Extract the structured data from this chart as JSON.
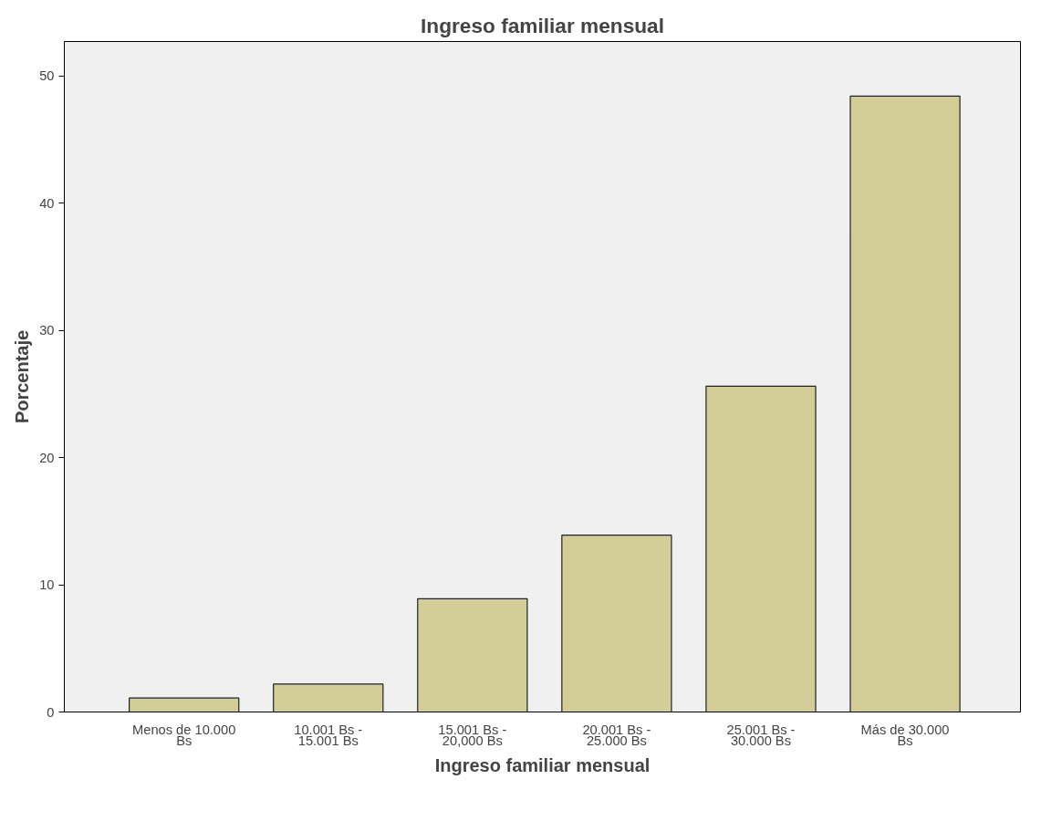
{
  "chart_data": {
    "type": "bar",
    "title": "Ingreso familiar mensual",
    "xlabel": "Ingreso familiar mensual",
    "ylabel": "Porcentaje",
    "categories": [
      "Menos de 10.000 Bs",
      "10.001 Bs - 15.001 Bs",
      "15.001 Bs - 20,000 Bs",
      "20.001 Bs - 25.000 Bs",
      "25.001 Bs - 30.000 Bs",
      "Más de 30.000 Bs"
    ],
    "values": [
      1.1,
      2.2,
      8.9,
      13.9,
      25.6,
      48.4
    ],
    "color": "#d3ce97",
    "ylim": [
      0,
      52.7
    ],
    "yticks": [
      0,
      10,
      20,
      30,
      40,
      50
    ]
  }
}
